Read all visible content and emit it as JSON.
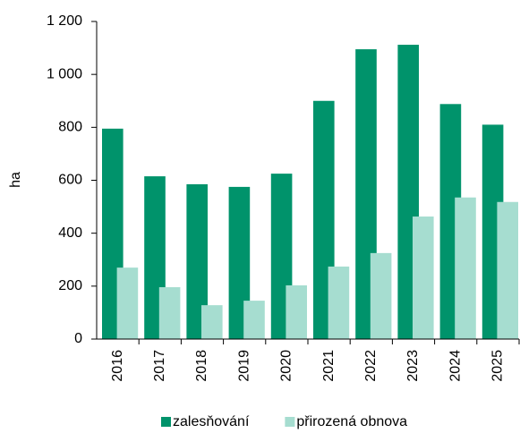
{
  "chart_data": {
    "type": "bar",
    "y_label": "ha",
    "categories": [
      "2016",
      "2017",
      "2018",
      "2019",
      "2020",
      "2021",
      "2022",
      "2023",
      "2024",
      "2025"
    ],
    "series": [
      {
        "name": "zalesňování",
        "color": "#00936b",
        "values": [
          795,
          615,
          585,
          575,
          625,
          900,
          1095,
          1112,
          888,
          810
        ]
      },
      {
        "name": "přirozená obnova",
        "color": "#a6ddd0",
        "values": [
          270,
          196,
          128,
          145,
          203,
          274,
          325,
          463,
          535,
          518
        ]
      }
    ],
    "ylim": [
      0,
      1200
    ],
    "yticks": [
      0,
      200,
      400,
      600,
      800,
      {
        "value": 1000,
        "label": "1 000"
      },
      {
        "value": 1200,
        "label": "1 200"
      }
    ],
    "legend": "bottom"
  }
}
